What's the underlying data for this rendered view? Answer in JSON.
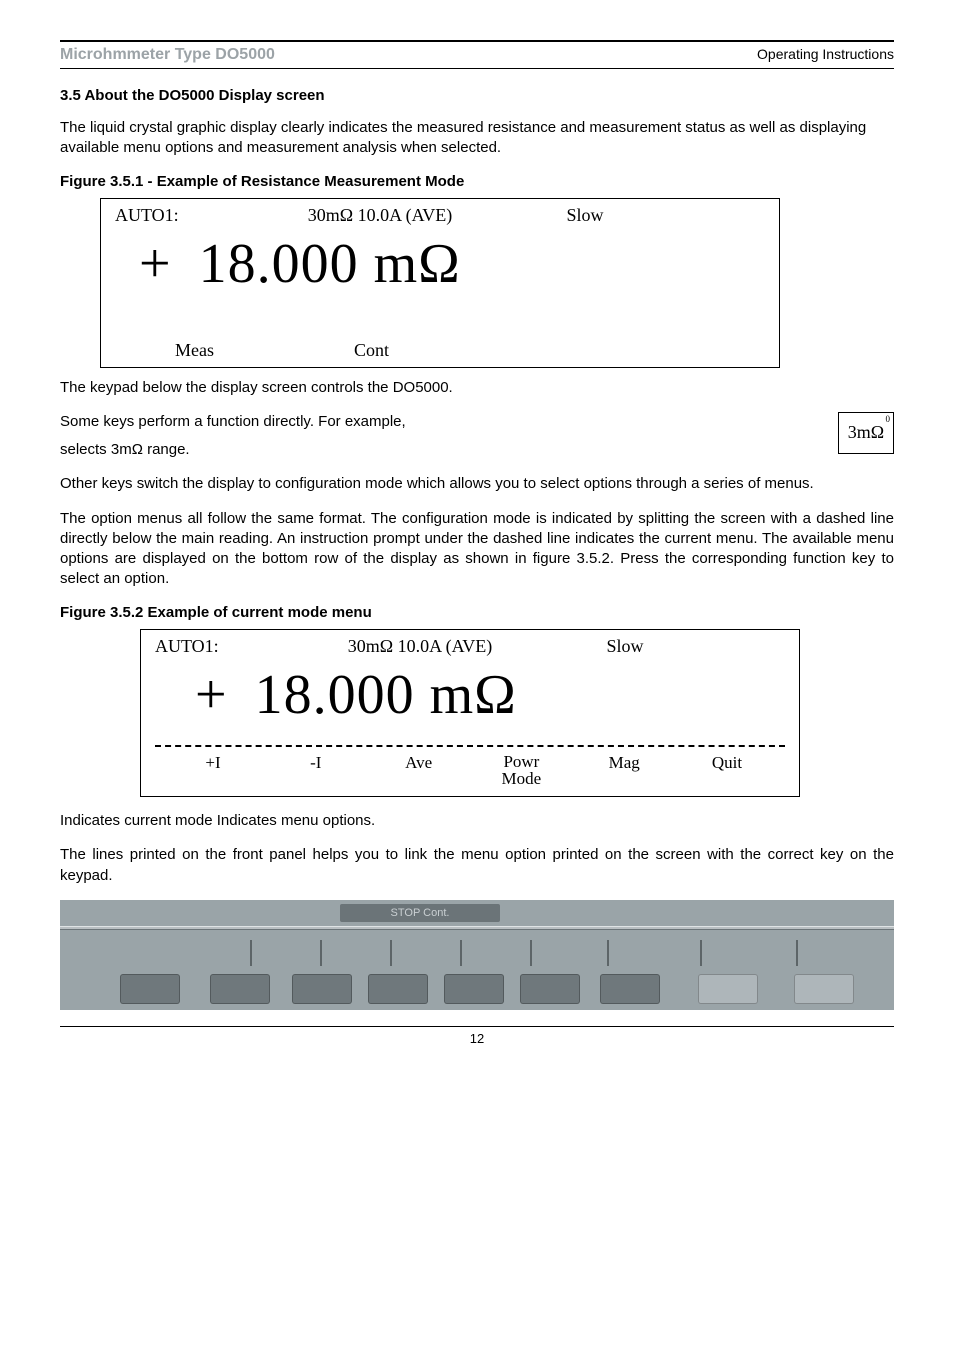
{
  "header": {
    "left": "Microhmmeter Type DO5000",
    "right": "Operating Instructions"
  },
  "section_title": "3.5 About the DO5000 Display screen",
  "intro": "The liquid crystal graphic display clearly indicates the measured resistance and measurement status as well as displaying available menu options and measurement analysis when selected.",
  "fig1": {
    "caption": "Figure 3.5.1 - Example of Resistance Measurement Mode",
    "top": {
      "auto": "AUTO1:",
      "range": "30mΩ 10.0A (AVE)",
      "speed": "Slow"
    },
    "reading": {
      "plus": "+",
      "value": "18.000 mΩ"
    },
    "bottom": {
      "a": "Meas",
      "b": "Cont"
    }
  },
  "after_fig1_a": "The keypad below the display screen controls the DO5000.",
  "after_fig1_b": "Some keys perform a function directly. For example,",
  "key": {
    "label": "3mΩ",
    "corner": "0"
  },
  "after_fig1_c": "selects 3mΩ range.",
  "para_other_keys": "Other keys switch the display to configuration mode which allows you to select options through a series of menus.",
  "para_format": "The option menus all follow the same format. The configuration mode is indicated by splitting the screen with a dashed line directly below the main reading. An instruction prompt under the dashed line indicates the current menu. The available menu options are displayed on the bottom row of the display as shown in figure 3.5.2. Press the corresponding function key to select an option.",
  "fig2": {
    "caption": "Figure 3.5.2  Example of current mode menu",
    "top": {
      "auto": "AUTO1:",
      "range": "30mΩ 10.0A (AVE)",
      "speed": "Slow"
    },
    "reading": {
      "plus": "+",
      "value": "18.000 mΩ"
    },
    "menu": [
      "+I",
      "-I",
      "Ave",
      "Powr\nMode",
      "Mag",
      "Quit"
    ]
  },
  "after_fig2_a": "Indicates current mode Indicates menu options.",
  "after_fig2_b": "The lines printed on the front panel helps you to link the menu option printed on the screen with the correct key on the keypad.",
  "panel": {
    "bg_color": "#9aa4a8",
    "key_color_dark": "#6f787c",
    "key_color_light": "#aeb6ba",
    "tick_positions": [
      190,
      260,
      330,
      400,
      470,
      547,
      640,
      736
    ],
    "key_positions": [
      60,
      150,
      232,
      308,
      384,
      460,
      540,
      638,
      734
    ],
    "light_indices": [
      7,
      8
    ],
    "top_strip_label": "STOP  Cont."
  },
  "page_number": "12"
}
